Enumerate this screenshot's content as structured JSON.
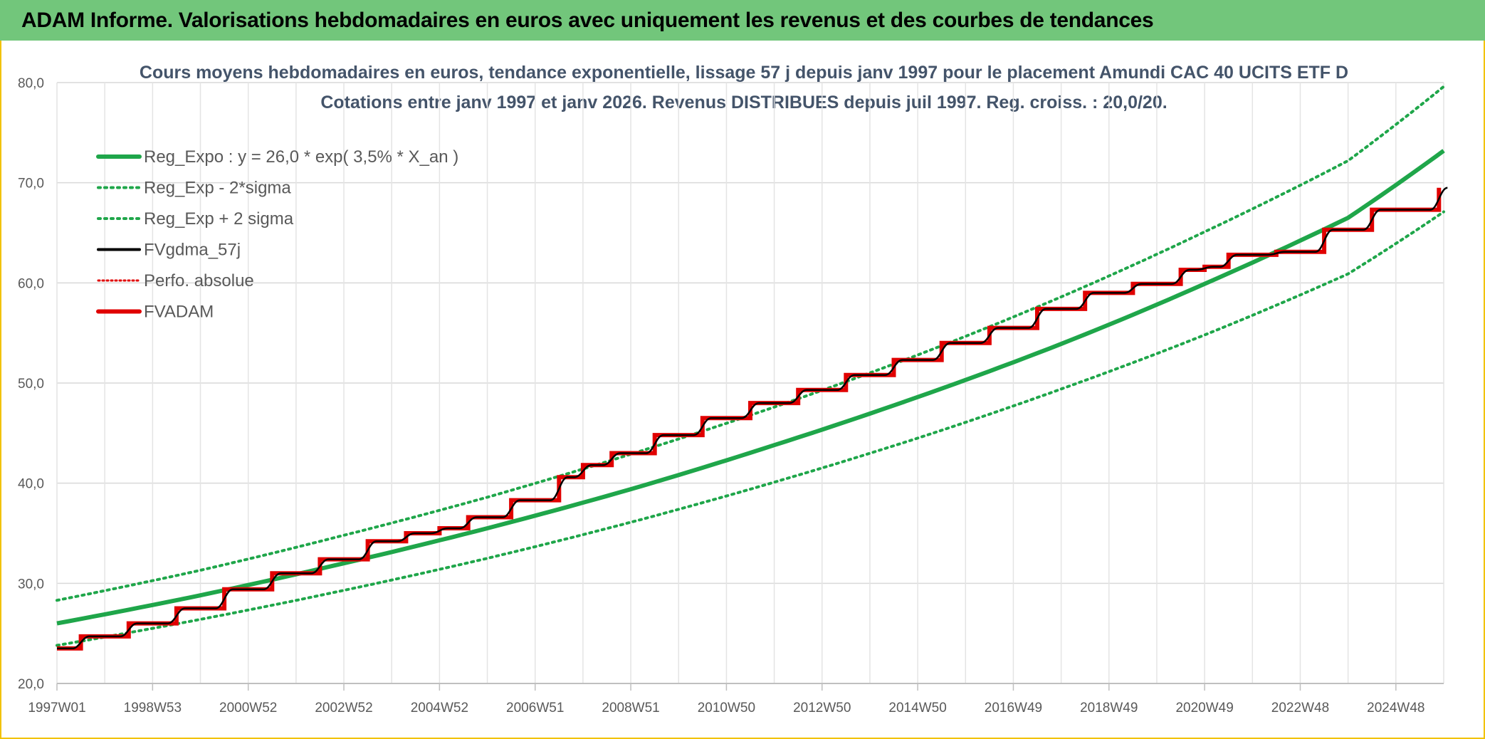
{
  "banner": {
    "title": "ADAM Informe. Valorisations hebdomadaires en euros avec uniquement les revenus et des courbes de tendances"
  },
  "colors": {
    "banner_bg": "#72c67b",
    "frame_border": "#f2c200",
    "reg_expo": "#1fa64a",
    "sigma_band": "#1fa64a",
    "fvgdma": "#000000",
    "perfo": "#e00000",
    "fvadam": "#e00000",
    "title_text": "#44546a"
  },
  "chart_data": {
    "type": "line",
    "title": "Cours moyens hebdomadaires en euros, tendance exponentielle, lissage 57 j depuis janv 1997 pour le placement Amundi CAC 40 UCITS ETF D",
    "subtitle": "Cotations entre janv 1997 et janv 2026. Revenus DISTRIBUES depuis juil 1997. Reg. croiss. : 20,0/20.",
    "xlabel": "",
    "ylabel": "",
    "x_tick_labels": [
      "1997W01",
      "1998W53",
      "2000W52",
      "2002W52",
      "2004W52",
      "2006W51",
      "2008W51",
      "2010W50",
      "2012W50",
      "2014W50",
      "2016W49",
      "2018W49",
      "2020W49",
      "2022W48",
      "2024W48"
    ],
    "x_range_years": [
      1997.0,
      2026.0
    ],
    "ylim": [
      20,
      80
    ],
    "y_ticks": [
      "20,0",
      "30,0",
      "40,0",
      "50,0",
      "60,0",
      "70,0",
      "80,0"
    ],
    "grid": true,
    "legend_position": "top-left",
    "series": [
      {
        "name": "Reg_Expo : y = 26,0 * exp( 3,5% *  X_an )",
        "style": "solid-thick-green",
        "x": [
          1997,
          2000,
          2003,
          2006,
          2009,
          2012,
          2015,
          2018,
          2021,
          2024,
          2026
        ],
        "values": [
          26.0,
          28.8,
          32.0,
          35.5,
          39.4,
          43.8,
          48.6,
          53.9,
          59.9,
          66.5,
          73.2
        ]
      },
      {
        "name": "Reg_Exp - 2*sigma",
        "style": "dotted-green",
        "x": [
          1997,
          2000,
          2003,
          2006,
          2009,
          2012,
          2015,
          2018,
          2021,
          2024,
          2026
        ],
        "values": [
          23.8,
          26.4,
          29.3,
          32.5,
          36.1,
          40.1,
          44.5,
          49.4,
          54.8,
          60.9,
          67.1
        ]
      },
      {
        "name": "Reg_Exp + 2 sigma",
        "style": "dotted-green",
        "x": [
          1997,
          2000,
          2003,
          2006,
          2009,
          2012,
          2015,
          2018,
          2021,
          2024,
          2026
        ],
        "values": [
          28.3,
          31.3,
          34.8,
          38.6,
          42.9,
          47.6,
          52.8,
          58.6,
          65.1,
          72.2,
          79.6
        ]
      },
      {
        "name": "FVgdma_57j",
        "style": "solid-black-smoothed",
        "derived_from": "FVADAM"
      },
      {
        "name": "Perfo. absolue",
        "style": "dotted-red",
        "derived_from": "FVADAM"
      },
      {
        "name": "FVADAM",
        "style": "solid-thick-red-steps",
        "x": [
          1997.0,
          1997.5,
          1998.5,
          1999.5,
          2000.5,
          2001.5,
          2002.5,
          2003.5,
          2004.3,
          2005.0,
          2005.6,
          2006.5,
          2007.5,
          2008.0,
          2008.6,
          2009.5,
          2010.5,
          2011.5,
          2012.5,
          2013.5,
          2014.5,
          2015.5,
          2016.5,
          2017.5,
          2018.5,
          2019.5,
          2020.5,
          2021.0,
          2021.5,
          2022.5,
          2023.5,
          2024.5,
          2025.5,
          2025.9
        ],
        "values": [
          23.5,
          24.7,
          26.0,
          27.5,
          29.4,
          31.0,
          32.4,
          34.2,
          35.0,
          35.5,
          36.6,
          38.3,
          40.6,
          41.8,
          43.0,
          44.8,
          46.5,
          48.0,
          49.3,
          50.8,
          52.3,
          54.0,
          55.5,
          57.4,
          59.0,
          59.9,
          61.3,
          61.6,
          62.8,
          63.1,
          65.3,
          67.3,
          67.3,
          69.5
        ]
      }
    ]
  }
}
